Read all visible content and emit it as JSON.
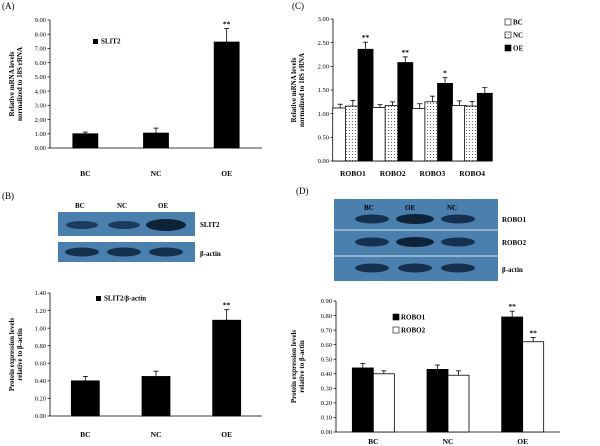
{
  "panels": {
    "A": "(A)",
    "B": "(B)",
    "C": "(C)",
    "D": "(D)"
  },
  "blots": {
    "B": {
      "lanes": [
        "BC",
        "NC",
        "OE"
      ],
      "rows": [
        "SLIT2",
        "β-actin"
      ]
    },
    "D": {
      "lanes": [
        "BC",
        "OE",
        "NC"
      ],
      "rows": [
        "ROBO1",
        "ROBO2",
        "β-actin"
      ]
    }
  },
  "colors": {
    "blot_bg": "#4a7fae",
    "band": "#122a44",
    "bar": "#000000"
  },
  "chart_data": [
    {
      "id": "A",
      "type": "bar",
      "title": "",
      "ylabel": "Relative mRNA levels normalized to 18S rRNA",
      "ylabel_lines": [
        "Relative mRNA levels",
        "normalized to 18S rRNA"
      ],
      "categories": [
        "BC",
        "NC",
        "OE"
      ],
      "series": [
        {
          "name": "SLIT2",
          "fill": "black",
          "values": [
            1.0,
            1.05,
            7.45
          ],
          "errors": [
            0.12,
            0.35,
            0.95
          ]
        }
      ],
      "significance": [
        "",
        "",
        "**"
      ],
      "ylim": [
        0,
        9
      ],
      "ticks": [
        "0.00",
        "1.00",
        "2.00",
        "3.00",
        "4.00",
        "5.00",
        "6.00",
        "7.00",
        "8.00",
        "9.00"
      ],
      "legend": "top-left"
    },
    {
      "id": "C",
      "type": "bar",
      "title": "",
      "ylabel": "Relative mRNA levels normalized to 18S rRNA",
      "ylabel_lines": [
        "Relative mRNA levels",
        "normalized to 18S rRNA"
      ],
      "categories": [
        "ROBO1",
        "ROBO2",
        "ROBO3",
        "ROBO4"
      ],
      "series": [
        {
          "name": "BC",
          "fill": "white",
          "values": [
            1.12,
            1.13,
            1.11,
            1.17
          ],
          "errors": [
            0.08,
            0.06,
            0.1,
            0.1
          ]
        },
        {
          "name": "NC",
          "fill": "dots",
          "values": [
            1.16,
            1.17,
            1.25,
            1.16
          ],
          "errors": [
            0.12,
            0.08,
            0.12,
            0.1
          ]
        },
        {
          "name": "OE",
          "fill": "black",
          "values": [
            2.36,
            2.08,
            1.64,
            1.43
          ],
          "errors": [
            0.15,
            0.12,
            0.12,
            0.12
          ]
        }
      ],
      "significance": [
        "**",
        "**",
        "*",
        ""
      ],
      "ylim": [
        0,
        3
      ],
      "ticks": [
        "0.00",
        "0.50",
        "1.00",
        "1.50",
        "2.00",
        "2.50",
        "3.00"
      ],
      "legend": "top-right"
    },
    {
      "id": "B",
      "type": "bar",
      "title": "",
      "ylabel": "Protein expression levels relative to β-actin",
      "ylabel_lines": [
        "Protein expression levels",
        "relative to β-actin"
      ],
      "categories": [
        "BC",
        "NC",
        "OE"
      ],
      "series": [
        {
          "name": "SLIT2/β-actin",
          "fill": "black",
          "values": [
            0.4,
            0.45,
            1.09
          ],
          "errors": [
            0.05,
            0.06,
            0.12
          ]
        }
      ],
      "significance": [
        "",
        "",
        "**"
      ],
      "ylim": [
        0,
        1.4
      ],
      "ticks": [
        "0.00",
        "0.20",
        "0.40",
        "0.60",
        "0.80",
        "1.00",
        "1.20",
        "1.40"
      ],
      "legend": "top-left"
    },
    {
      "id": "D",
      "type": "bar",
      "title": "",
      "ylabel": "Protein expression levels relative to β-actin",
      "ylabel_lines": [
        "Protein expression levels",
        "relative to β-actin"
      ],
      "categories": [
        "BC",
        "NC",
        "OE"
      ],
      "series": [
        {
          "name": "ROBO1",
          "fill": "black",
          "values": [
            0.44,
            0.43,
            0.79
          ],
          "errors": [
            0.03,
            0.03,
            0.04
          ]
        },
        {
          "name": "ROBO2",
          "fill": "white",
          "values": [
            0.4,
            0.39,
            0.62
          ],
          "errors": [
            0.02,
            0.03,
            0.03
          ]
        }
      ],
      "significance_series": [
        [
          "",
          "",
          "**"
        ],
        [
          "",
          "",
          "**"
        ]
      ],
      "ylim": [
        0,
        0.9
      ],
      "ticks": [
        "0.00",
        "0.10",
        "0.20",
        "0.30",
        "0.40",
        "0.50",
        "0.60",
        "0.70",
        "0.80",
        "0.90"
      ],
      "legend": "top-left"
    }
  ]
}
